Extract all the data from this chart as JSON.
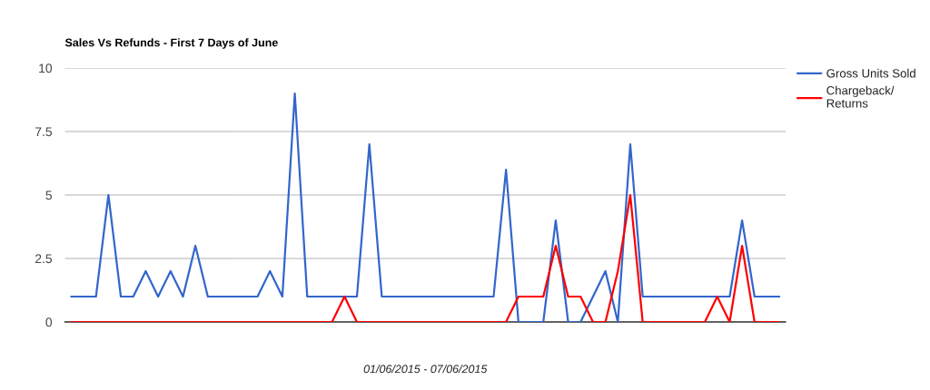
{
  "chart_data": {
    "type": "line",
    "title": "Sales Vs Refunds - First 7 Days of June",
    "xlabel": "01/06/2015 - 07/06/2015",
    "categories": [
      null,
      null,
      null,
      null,
      null,
      null,
      null,
      null,
      null,
      null,
      null,
      null,
      null,
      null,
      null,
      null,
      null,
      null,
      null,
      null,
      null,
      null,
      null,
      null,
      null,
      null,
      null,
      null,
      null,
      null,
      null,
      null,
      null,
      null,
      null,
      null,
      null,
      null,
      null,
      null,
      null,
      null,
      null,
      null,
      null,
      null,
      null,
      null,
      null,
      null,
      null,
      null,
      null,
      null,
      null,
      null,
      null,
      null
    ],
    "series": [
      {
        "name": "Gross Units Sold",
        "color": "#3366cc",
        "values": [
          1,
          1,
          1,
          5,
          1,
          1,
          2,
          1,
          2,
          1,
          3,
          1,
          1,
          1,
          1,
          1,
          2,
          1,
          9,
          1,
          1,
          1,
          1,
          1,
          7,
          1,
          1,
          1,
          1,
          1,
          1,
          1,
          1,
          1,
          1,
          6,
          0,
          0,
          0,
          4,
          0,
          0,
          1,
          2,
          0,
          7,
          1,
          1,
          1,
          1,
          1,
          1,
          1,
          1,
          4,
          1,
          1,
          1
        ]
      },
      {
        "name": "Chargeback/\nReturns",
        "color": "#ff0000",
        "values": [
          0,
          0,
          0,
          0,
          0,
          0,
          0,
          0,
          0,
          0,
          0,
          0,
          0,
          0,
          0,
          0,
          0,
          0,
          0,
          0,
          0,
          0,
          1,
          0,
          0,
          0,
          0,
          0,
          0,
          0,
          0,
          0,
          0,
          0,
          0,
          0,
          1,
          1,
          1,
          3,
          1,
          1,
          0,
          0,
          2,
          5,
          0,
          0,
          0,
          0,
          0,
          0,
          1,
          0,
          3,
          0,
          0,
          0
        ]
      }
    ],
    "ylim": [
      0,
      10
    ],
    "yticks": [
      0,
      2.5,
      5,
      7.5,
      10
    ],
    "tick_labels": "y",
    "grid": "y",
    "legend": "top right"
  }
}
